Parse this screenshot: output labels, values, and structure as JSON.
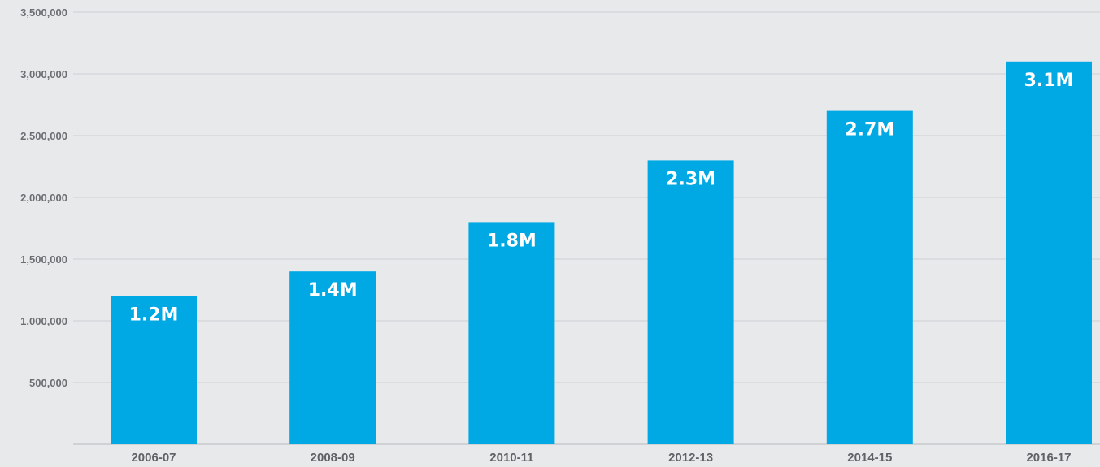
{
  "chart_data": {
    "type": "bar",
    "categories": [
      "2006-07",
      "2008-09",
      "2010-11",
      "2012-13",
      "2014-15",
      "2016-17"
    ],
    "values": [
      1200000,
      1400000,
      1800000,
      2300000,
      2700000,
      3100000
    ],
    "data_labels": [
      "1.2M",
      "1.4M",
      "1.8M",
      "2.3M",
      "2.7M",
      "3.1M"
    ],
    "y_ticks": [
      500000,
      1000000,
      1500000,
      2000000,
      2500000,
      3000000,
      3500000
    ],
    "y_tick_labels": [
      "500,000",
      "1,000,000",
      "1,500,000",
      "2,000,000",
      "2,500,000",
      "3,000,000",
      "3,500,000"
    ],
    "ylim": [
      0,
      3500000
    ],
    "title": "",
    "xlabel": "",
    "ylabel": "",
    "grid": true,
    "bar_color": "#00a8e4",
    "background_color": "#e8e9eb"
  }
}
